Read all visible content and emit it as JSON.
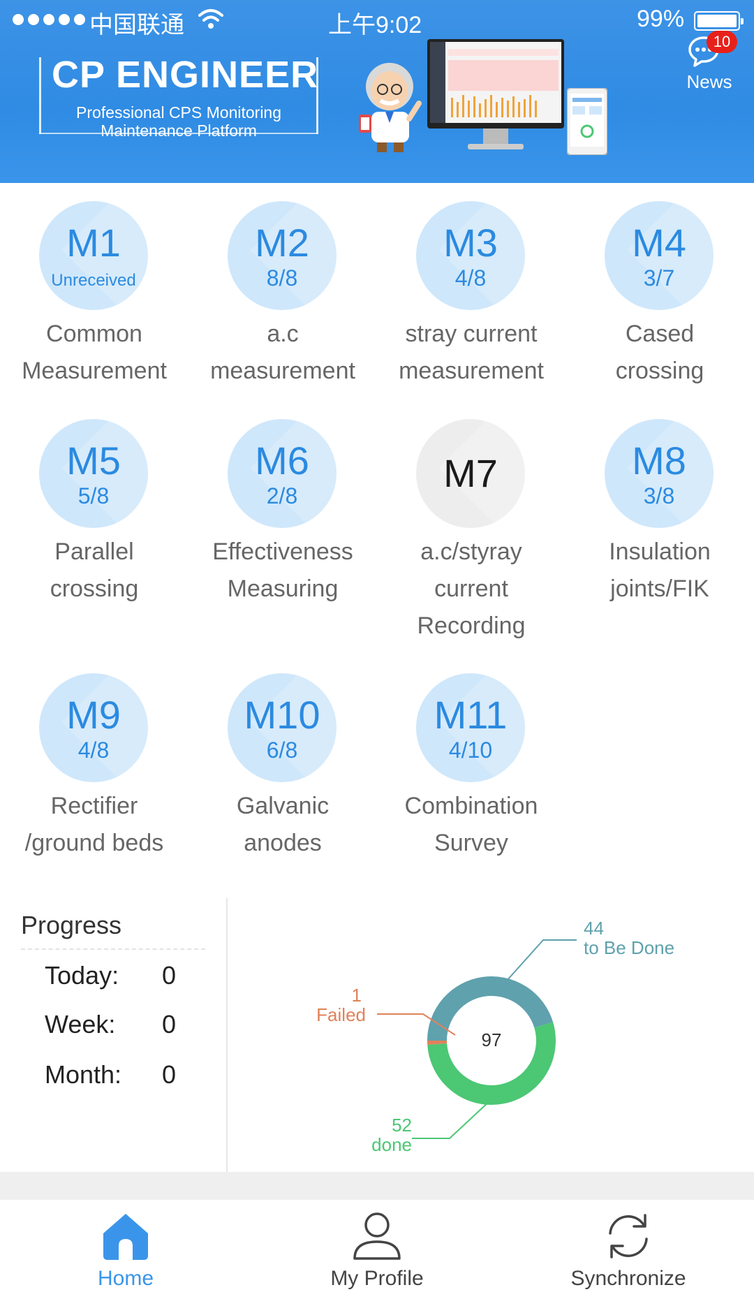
{
  "status_bar": {
    "carrier": "中国联通",
    "time": "上午9:02",
    "battery": "99%"
  },
  "header": {
    "brand_title": "CP ENGINEER",
    "brand_subtitle_line1": "Professional CPS Monitoring",
    "brand_subtitle_line2": "Maintenance Platform",
    "news_label": "News",
    "news_count": "10"
  },
  "modules": [
    {
      "code": "M1",
      "count": "Unreceived",
      "label1": "Common",
      "label2": "Measurement",
      "label3": ""
    },
    {
      "code": "M2",
      "count": "8/8",
      "label1": "a.c",
      "label2": "measurement",
      "label3": ""
    },
    {
      "code": "M3",
      "count": "4/8",
      "label1": "stray current",
      "label2": "measurement",
      "label3": ""
    },
    {
      "code": "M4",
      "count": "3/7",
      "label1": "Cased",
      "label2": "crossing",
      "label3": ""
    },
    {
      "code": "M5",
      "count": "5/8",
      "label1": "Parallel",
      "label2": "crossing",
      "label3": ""
    },
    {
      "code": "M6",
      "count": "2/8",
      "label1": "Effectiveness",
      "label2": "Measuring",
      "label3": ""
    },
    {
      "code": "M7",
      "count": "",
      "label1": "a.c/styray",
      "label2": "current",
      "label3": "Recording"
    },
    {
      "code": "M8",
      "count": "3/8",
      "label1": "Insulation",
      "label2": "joints/FIK",
      "label3": ""
    },
    {
      "code": "M9",
      "count": "4/8",
      "label1": "Rectifier",
      "label2": "/ground beds",
      "label3": ""
    },
    {
      "code": "M10",
      "count": "6/8",
      "label1": "Galvanic",
      "label2": "anodes",
      "label3": ""
    },
    {
      "code": "M11",
      "count": "4/10",
      "label1": "Combination",
      "label2": "Survey",
      "label3": ""
    }
  ],
  "progress": {
    "title": "Progress",
    "today_label": "Today:",
    "today_value": "0",
    "week_label": "Week:",
    "week_value": "0",
    "month_label": "Month:",
    "month_value": "0"
  },
  "chart_data": {
    "type": "pie",
    "variant": "donut",
    "total": "97",
    "slices": [
      {
        "value": 44,
        "label": "to Be Done",
        "value_text": "44",
        "color": "#5fa1ad"
      },
      {
        "value": 52,
        "label": "done",
        "value_text": "52",
        "color": "#4cc774"
      },
      {
        "value": 1,
        "label": "Failed",
        "value_text": "1",
        "color": "#e0825a"
      }
    ]
  },
  "tabs": [
    {
      "label": "Home",
      "icon": "home-icon",
      "active": true
    },
    {
      "label": "My Profile",
      "icon": "person-icon",
      "active": false
    },
    {
      "label": "Synchronize",
      "icon": "sync-icon",
      "active": false
    }
  ],
  "colors": {
    "header_blue": "#2f8be3",
    "module_blue": "#2b8ae0",
    "active_tab": "#3a95ea",
    "badge_red": "#e8201a"
  }
}
